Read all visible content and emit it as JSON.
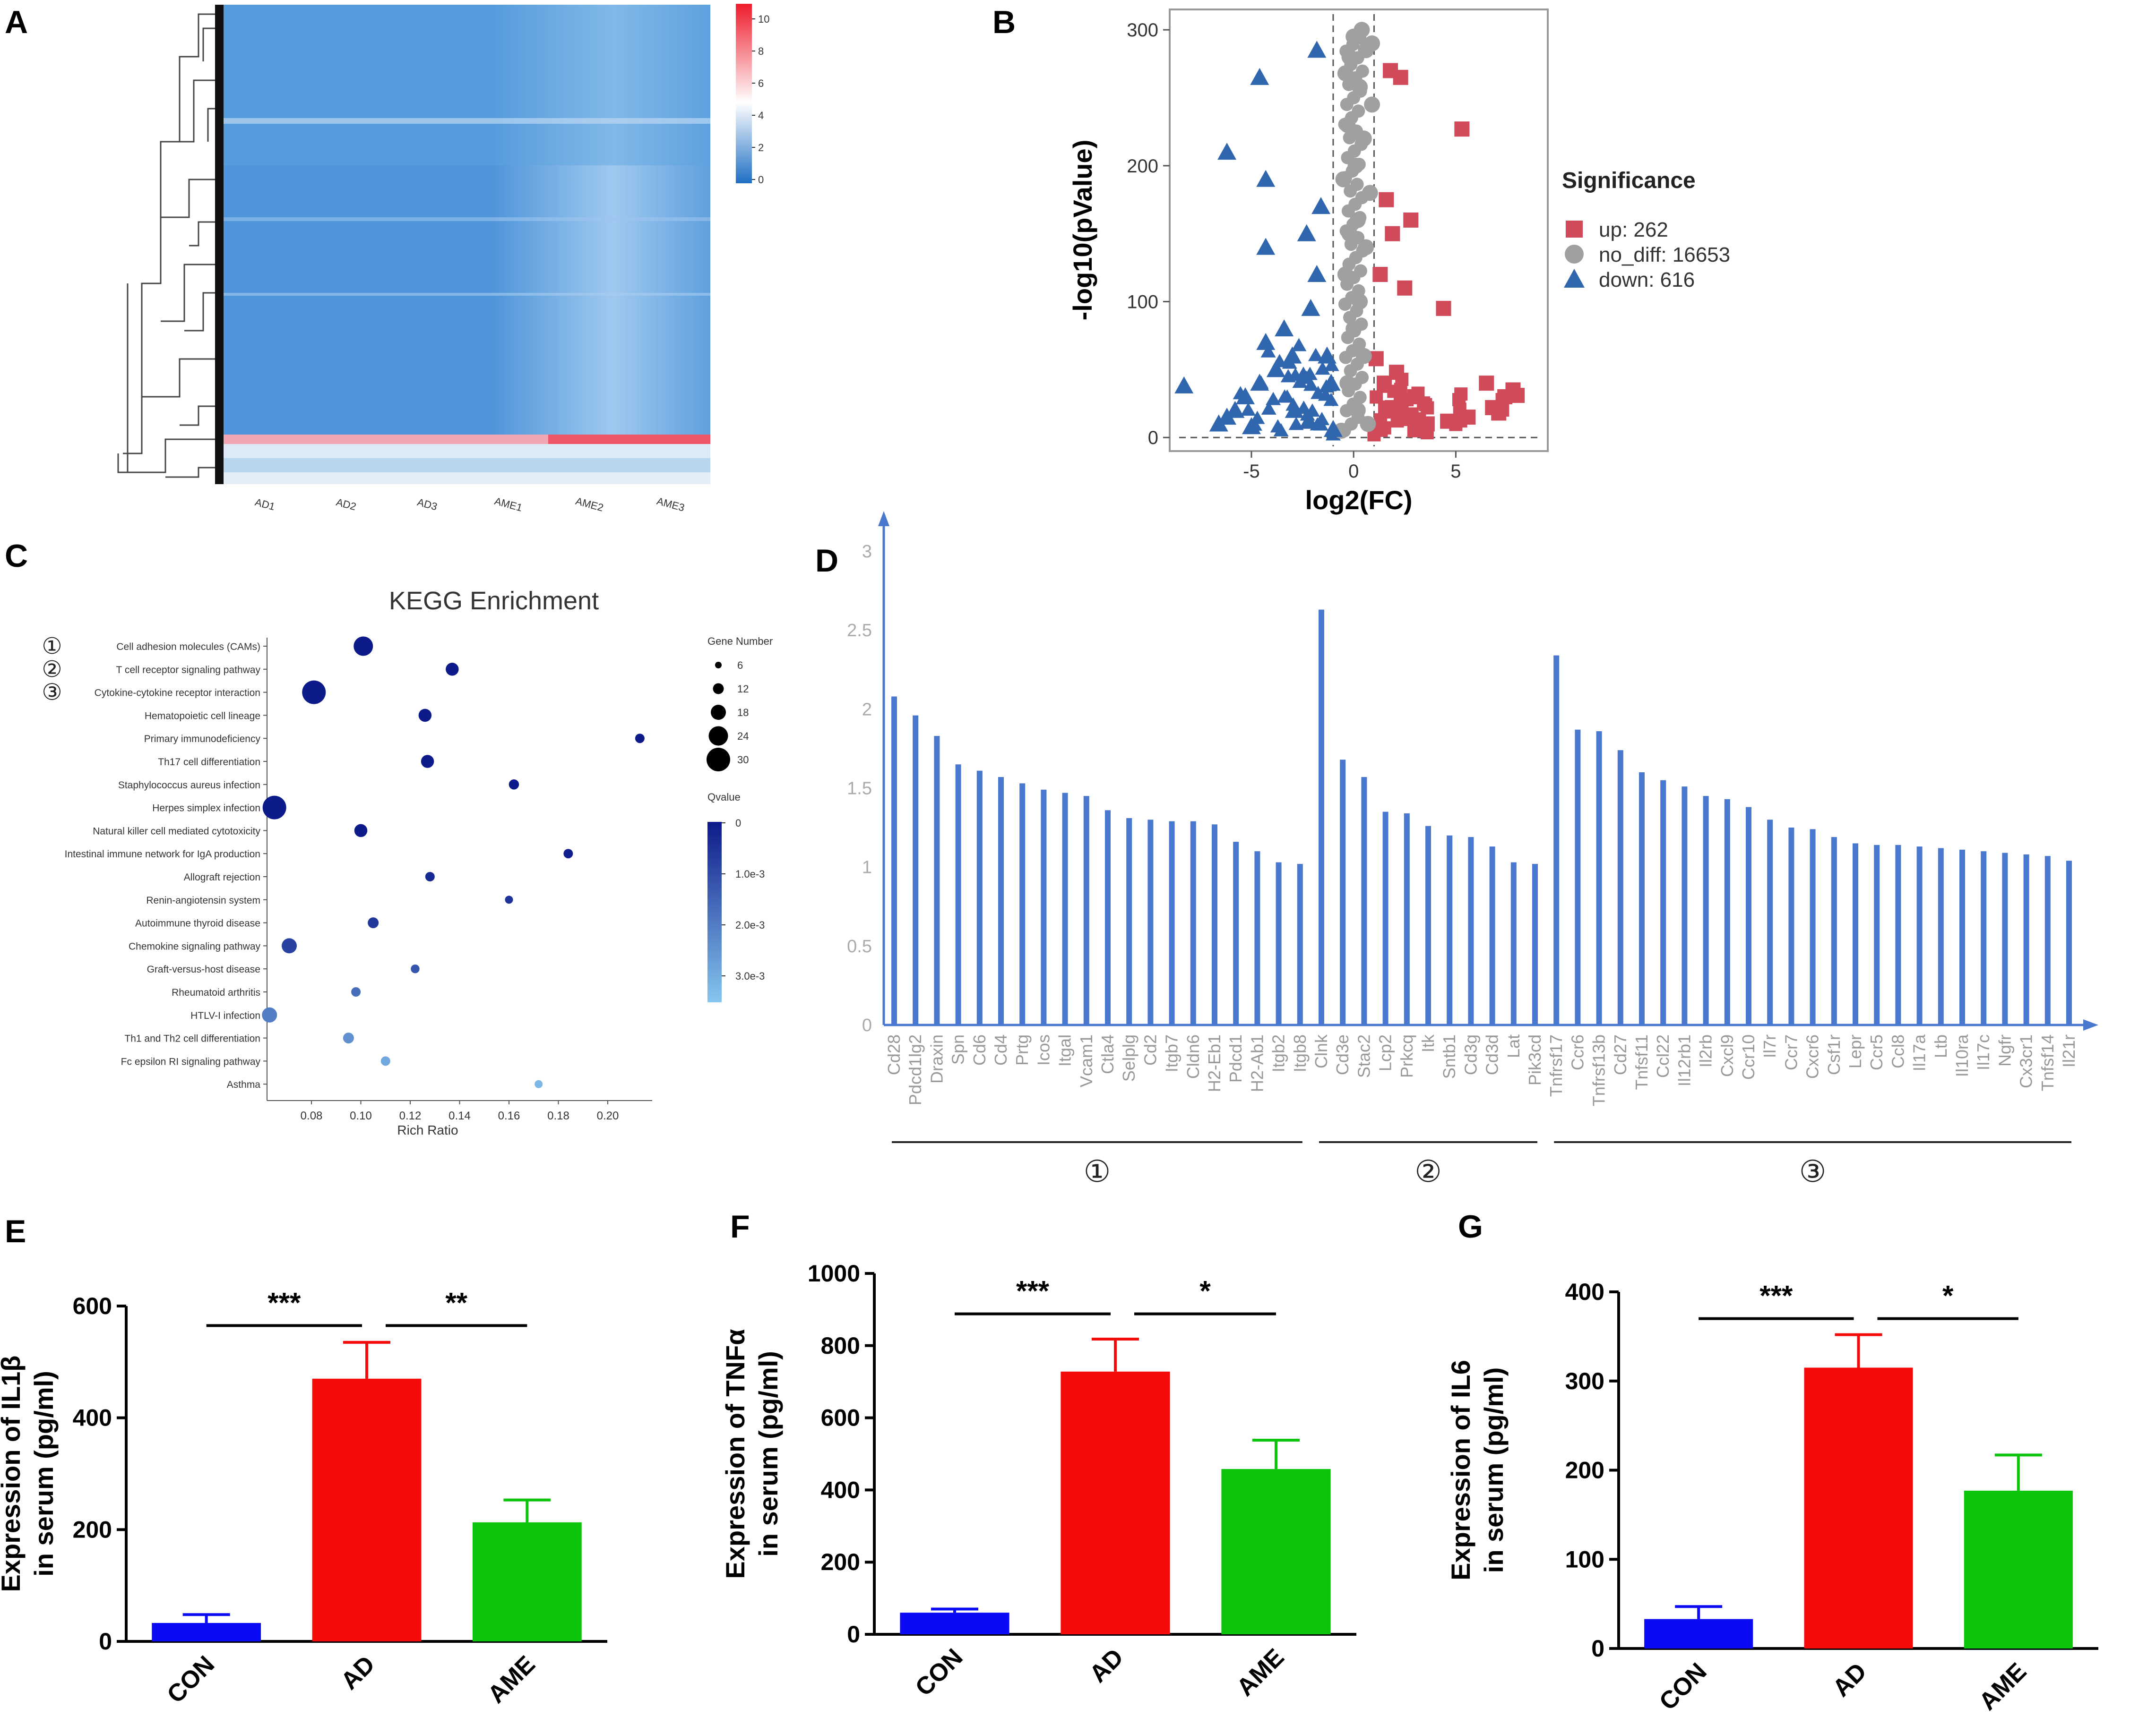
{
  "panels": {
    "A": "A",
    "B": "B",
    "C": "C",
    "D": "D",
    "E": "E",
    "F": "F",
    "G": "G"
  },
  "colors": {
    "blue_bar": "#0a0af5",
    "red_bar": "#f50a0a",
    "green_bar": "#0cc40c",
    "volcano_up": "#d14a5a",
    "volcano_nodiff": "#a0a0a0",
    "volcano_down": "#2f66ad",
    "kegg_dark": "#0d1a8a",
    "kegg_light": "#86c6ef",
    "panel_d_bar": "#4a78cf"
  },
  "chart_data": [
    {
      "id": "A",
      "type": "heatmap",
      "columns": [
        "AD1",
        "AD2",
        "AD3",
        "AME1",
        "AME2",
        "AME3"
      ],
      "colorbar": {
        "min": 0,
        "max": 10,
        "ticks": [
          "10",
          "8",
          "6",
          "4",
          "2",
          "0"
        ]
      }
    },
    {
      "id": "B",
      "type": "scatter",
      "xlabel": "log2(FC)",
      "ylabel": "-log10(pValue)",
      "xticks": [
        "-5",
        "0",
        "5"
      ],
      "xtick_values": [
        -5,
        0,
        5
      ],
      "yticks": [
        "0",
        "100",
        "200",
        "300"
      ],
      "ytick_values": [
        0,
        100,
        200,
        300
      ],
      "xlim": [
        -9,
        9.5
      ],
      "ylim": [
        -10,
        315
      ],
      "legend_title": "Significance",
      "legend": [
        {
          "key": "up",
          "label": "up: 262"
        },
        {
          "key": "nodiff",
          "label": "no_diff: 16653"
        },
        {
          "key": "down",
          "label": "down: 616"
        }
      ],
      "series": [
        {
          "name": "up",
          "points": [
            [
              1.8,
              270
            ],
            [
              2.3,
              265
            ],
            [
              5.3,
              227
            ],
            [
              1.6,
              175
            ],
            [
              2.8,
              160
            ],
            [
              1.9,
              150
            ],
            [
              4.4,
              95
            ],
            [
              2.5,
              110
            ],
            [
              1.3,
              120
            ],
            [
              6.5,
              40
            ],
            [
              7.4,
              30
            ],
            [
              8.0,
              31
            ],
            [
              7.8,
              35
            ],
            [
              6.8,
              22
            ],
            [
              7.1,
              18
            ],
            [
              5.6,
              15
            ],
            [
              4.6,
              12
            ],
            [
              3.6,
              10
            ],
            [
              2.7,
              14
            ],
            [
              1.9,
              22
            ],
            [
              1.5,
              40
            ],
            [
              1.1,
              58
            ],
            [
              2.1,
              48
            ],
            [
              3.0,
              30
            ],
            [
              1.3,
              6
            ]
          ]
        },
        {
          "name": "nodiff",
          "points": [
            [
              0,
              295
            ],
            [
              0.4,
              300
            ],
            [
              0.9,
              290
            ],
            [
              -0.2,
              280
            ],
            [
              0.6,
              285
            ],
            [
              -0.4,
              268
            ],
            [
              0.3,
              258
            ],
            [
              0.9,
              245
            ],
            [
              -0.3,
              230
            ],
            [
              0.5,
              220
            ],
            [
              0.1,
              200
            ],
            [
              -0.5,
              190
            ],
            [
              0.8,
              180
            ],
            [
              0.2,
              160
            ],
            [
              -0.2,
              150
            ],
            [
              0.6,
              140
            ],
            [
              -0.4,
              120
            ],
            [
              0.3,
              100
            ],
            [
              0,
              80
            ],
            [
              0.5,
              60
            ],
            [
              -0.3,
              40
            ],
            [
              0.2,
              20
            ],
            [
              0.7,
              10
            ],
            [
              -0.6,
              5
            ]
          ]
        },
        {
          "name": "down",
          "points": [
            [
              -1.8,
              285
            ],
            [
              -4.6,
              265
            ],
            [
              -6.2,
              210
            ],
            [
              -4.3,
              190
            ],
            [
              -1.6,
              170
            ],
            [
              -2.3,
              150
            ],
            [
              -4.3,
              140
            ],
            [
              -1.8,
              120
            ],
            [
              -3.4,
              80
            ],
            [
              -4.3,
              70
            ],
            [
              -2.1,
              95
            ],
            [
              -3.0,
              60
            ],
            [
              -3.8,
              50
            ],
            [
              -4.6,
              40
            ],
            [
              -5.3,
              30
            ],
            [
              -5.8,
              20
            ],
            [
              -6.2,
              15
            ],
            [
              -6.6,
              10
            ],
            [
              -8.3,
              38
            ],
            [
              -5.0,
              8
            ],
            [
              -2.9,
              20
            ],
            [
              -2.2,
              12
            ],
            [
              -1.3,
              60
            ],
            [
              -1.1,
              40
            ],
            [
              -1.0,
              6
            ]
          ]
        }
      ]
    },
    {
      "id": "C",
      "type": "scatter",
      "title": "KEGG Enrichment",
      "xlabel": "Rich Ratio",
      "xticks": [
        "0.08",
        "0.10",
        "0.12",
        "0.14",
        "0.16",
        "0.18",
        "0.20"
      ],
      "xtick_values": [
        0.08,
        0.1,
        0.12,
        0.14,
        0.16,
        0.18,
        0.2
      ],
      "xlim": [
        0.062,
        0.218
      ],
      "size_legend_title": "Gene Number",
      "size_legend": [
        6,
        12,
        18,
        24,
        30
      ],
      "size_legend_labels": [
        "6",
        "12",
        "18",
        "24",
        "30"
      ],
      "color_legend_title": "Qvalue",
      "color_legend_ticks": [
        "0",
        "1.0e-3",
        "2.0e-3",
        "3.0e-3"
      ],
      "markers": [
        "①",
        "②",
        "③"
      ],
      "terms": [
        {
          "name": "Cell adhesion molecules (CAMs)",
          "ratio": 0.101,
          "genes": 24,
          "q": 0.0
        },
        {
          "name": "T cell receptor signaling pathway",
          "ratio": 0.137,
          "genes": 15,
          "q": 0.0
        },
        {
          "name": "Cytokine-cytokine receptor interaction",
          "ratio": 0.081,
          "genes": 30,
          "q": 0.0
        },
        {
          "name": "Hematopoietic cell lineage",
          "ratio": 0.126,
          "genes": 15,
          "q": 0.0
        },
        {
          "name": "Primary immunodeficiency",
          "ratio": 0.213,
          "genes": 10,
          "q": 0.0
        },
        {
          "name": "Th17 cell differentiation",
          "ratio": 0.127,
          "genes": 15,
          "q": 0.0
        },
        {
          "name": "Staphylococcus aureus infection",
          "ratio": 0.162,
          "genes": 11,
          "q": 0.0
        },
        {
          "name": "Herpes simplex infection",
          "ratio": 0.065,
          "genes": 30,
          "q": 0.0
        },
        {
          "name": "Natural killer cell mediated cytotoxicity",
          "ratio": 0.1,
          "genes": 15,
          "q": 0.0
        },
        {
          "name": "Intestinal immune network for IgA production",
          "ratio": 0.184,
          "genes": 10,
          "q": 0.0001
        },
        {
          "name": "Allograft rejection",
          "ratio": 0.128,
          "genes": 10,
          "q": 0.0003
        },
        {
          "name": "Renin-angiotensin system",
          "ratio": 0.16,
          "genes": 8,
          "q": 0.0005
        },
        {
          "name": "Autoimmune thyroid disease",
          "ratio": 0.105,
          "genes": 12,
          "q": 0.0006
        },
        {
          "name": "Chemokine signaling pathway",
          "ratio": 0.071,
          "genes": 18,
          "q": 0.0008
        },
        {
          "name": "Graft-versus-host disease",
          "ratio": 0.122,
          "genes": 9,
          "q": 0.0012
        },
        {
          "name": "Rheumatoid arthritis",
          "ratio": 0.098,
          "genes": 10,
          "q": 0.0017
        },
        {
          "name": "HTLV-I infection",
          "ratio": 0.063,
          "genes": 18,
          "q": 0.002
        },
        {
          "name": "Th1 and Th2 cell differentiation",
          "ratio": 0.095,
          "genes": 12,
          "q": 0.0024
        },
        {
          "name": "Fc epsilon RI signaling pathway",
          "ratio": 0.11,
          "genes": 10,
          "q": 0.0029
        },
        {
          "name": "Asthma",
          "ratio": 0.172,
          "genes": 8,
          "q": 0.0032
        }
      ]
    },
    {
      "id": "D",
      "type": "bar",
      "yticks": [
        "0",
        "0.5",
        "1",
        "1.5",
        "2",
        "2.5",
        "3"
      ],
      "ytick_values": [
        0,
        0.5,
        1,
        1.5,
        2,
        2.5,
        3
      ],
      "ylim": [
        0,
        3.2
      ],
      "group_labels": [
        "①",
        "②",
        "③"
      ],
      "groups": [
        {
          "categories": [
            "Cd28",
            "Pdcd1lg2",
            "Draxin",
            "Spn",
            "Cd6",
            "Cd4",
            "Prtg",
            "Icos",
            "Itgal",
            "Vcam1",
            "Ctla4",
            "Selplg",
            "Cd2",
            "Itgb7",
            "Cldn6",
            "H2-Eb1",
            "Pdcd1",
            "H2-Ab1",
            "Itgb2",
            "Itgb8"
          ],
          "values": [
            2.08,
            1.96,
            1.83,
            1.65,
            1.61,
            1.57,
            1.53,
            1.49,
            1.47,
            1.45,
            1.36,
            1.31,
            1.3,
            1.29,
            1.29,
            1.27,
            1.16,
            1.1,
            1.03,
            1.02
          ]
        },
        {
          "categories": [
            "Clnk",
            "Cd3e",
            "Stac2",
            "Lcp2",
            "Prkcq",
            "Itk",
            "Sntb1",
            "Cd3g",
            "Cd3d",
            "Lat",
            "Pik3cd"
          ],
          "values": [
            2.63,
            1.68,
            1.57,
            1.35,
            1.34,
            1.26,
            1.2,
            1.19,
            1.13,
            1.03,
            1.02
          ]
        },
        {
          "categories": [
            "Tnfrsf17",
            "Ccr6",
            "Tnfrsf13b",
            "Cd27",
            "Tnfsf11",
            "Ccl22",
            "Il12rb1",
            "Il2rb",
            "Cxcl9",
            "Ccr10",
            "Il7r",
            "Ccr7",
            "Cxcr6",
            "Csf1r",
            "Lepr",
            "Ccr5",
            "Ccl8",
            "Il17a",
            "Ltb",
            "Il10ra",
            "Il17c",
            "Ngfr",
            "Cx3cr1",
            "Tnfsf14",
            "Il21r"
          ],
          "values": [
            2.34,
            1.87,
            1.86,
            1.74,
            1.6,
            1.55,
            1.51,
            1.45,
            1.43,
            1.38,
            1.3,
            1.25,
            1.24,
            1.19,
            1.15,
            1.14,
            1.14,
            1.13,
            1.12,
            1.11,
            1.1,
            1.09,
            1.08,
            1.07,
            1.04
          ]
        }
      ]
    },
    {
      "id": "E",
      "type": "bar",
      "ylabel_line1": "Expression of IL1β",
      "ylabel_line2": "in serum (pg/ml)",
      "categories": [
        "CON",
        "AD",
        "AME"
      ],
      "values": [
        33,
        470,
        213
      ],
      "errors": [
        15,
        65,
        40
      ],
      "yticks": [
        "0",
        "200",
        "400",
        "600"
      ],
      "ytick_values": [
        0,
        200,
        400,
        600
      ],
      "ylim": [
        0,
        600
      ],
      "significance": [
        {
          "from": 0,
          "to": 1,
          "label": "***",
          "y": 565
        },
        {
          "from": 1,
          "to": 2,
          "label": "**",
          "y": 565
        }
      ]
    },
    {
      "id": "F",
      "type": "bar",
      "ylabel_line1": "Expression of TNFα",
      "ylabel_line2": "in serum (pg/ml)",
      "categories": [
        "CON",
        "AD",
        "AME"
      ],
      "values": [
        60,
        728,
        458
      ],
      "errors": [
        10,
        90,
        80
      ],
      "yticks": [
        "0",
        "200",
        "400",
        "600",
        "800",
        "1000"
      ],
      "ytick_values": [
        0,
        200,
        400,
        600,
        800,
        1000
      ],
      "ylim": [
        0,
        1000
      ],
      "significance": [
        {
          "from": 0,
          "to": 1,
          "label": "***",
          "y": 888
        },
        {
          "from": 1,
          "to": 2,
          "label": "*",
          "y": 888
        }
      ]
    },
    {
      "id": "G",
      "type": "bar",
      "ylabel_line1": "Expression of IL6",
      "ylabel_line2": "in serum (pg/ml)",
      "categories": [
        "CON",
        "AD",
        "AME"
      ],
      "values": [
        33,
        315,
        177
      ],
      "errors": [
        14,
        37,
        40
      ],
      "yticks": [
        "0",
        "100",
        "200",
        "300",
        "400"
      ],
      "ytick_values": [
        0,
        100,
        200,
        300,
        400
      ],
      "ylim": [
        0,
        400
      ],
      "significance": [
        {
          "from": 0,
          "to": 1,
          "label": "***",
          "y": 370
        },
        {
          "from": 1,
          "to": 2,
          "label": "*",
          "y": 370
        }
      ]
    }
  ]
}
